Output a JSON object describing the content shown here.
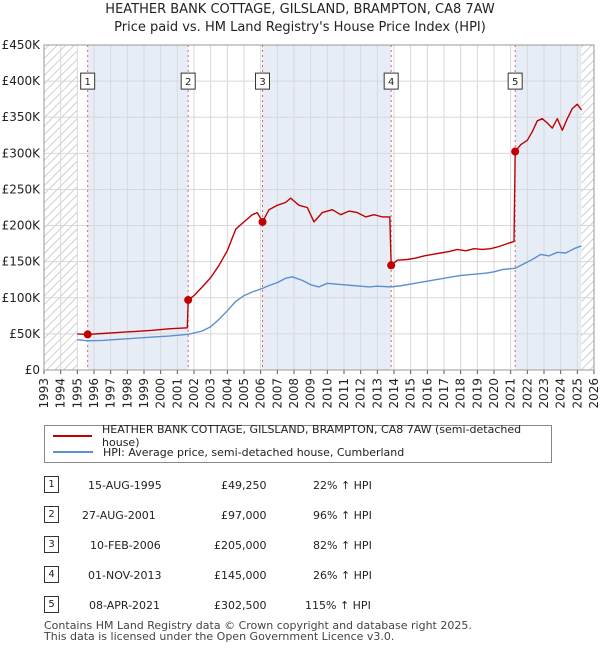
{
  "header": {
    "title": "HEATHER BANK COTTAGE, GILSLAND, BRAMPTON, CA8 7AW",
    "subtitle": "Price paid vs. HM Land Registry's House Price Index (HPI)"
  },
  "colors": {
    "property": "#c00000",
    "hpi": "#5b8fd0",
    "shade": "#dde6f3",
    "grid": "#d8d8d8",
    "marker_line": "#e06060"
  },
  "chart_data": {
    "type": "line",
    "title": "HEATHER BANK COTTAGE, GILSLAND, BRAMPTON, CA8 7AW",
    "subtitle": "Price paid vs. HM Land Registry's House Price Index (HPI)",
    "xlim": [
      1993,
      2026
    ],
    "ylim": [
      0,
      450000
    ],
    "x_ticks": [
      "1993",
      "1994",
      "1995",
      "1996",
      "1997",
      "1998",
      "1999",
      "2000",
      "2001",
      "2002",
      "2003",
      "2004",
      "2005",
      "2006",
      "2007",
      "2008",
      "2009",
      "2010",
      "2011",
      "2012",
      "2013",
      "2014",
      "2015",
      "2016",
      "2017",
      "2018",
      "2019",
      "2020",
      "2021",
      "2022",
      "2023",
      "2024",
      "2025",
      "2026"
    ],
    "y_ticks": [
      {
        "value": 0,
        "label": "£0"
      },
      {
        "value": 50000,
        "label": "£50K"
      },
      {
        "value": 100000,
        "label": "£100K"
      },
      {
        "value": 150000,
        "label": "£150K"
      },
      {
        "value": 200000,
        "label": "£200K"
      },
      {
        "value": 250000,
        "label": "£250K"
      },
      {
        "value": 300000,
        "label": "£300K"
      },
      {
        "value": 350000,
        "label": "£350K"
      },
      {
        "value": 400000,
        "label": "£400K"
      },
      {
        "value": 450000,
        "label": "£450K"
      }
    ],
    "hatched_ranges": [
      [
        1993,
        1995
      ],
      [
        2025.25,
        2026
      ]
    ],
    "grid": true,
    "series": [
      {
        "name": "HEATHER BANK COTTAGE, GILSLAND, BRAMPTON, CA8 7AW (semi-detached house)",
        "color": "#c00000",
        "points": [
          [
            1995.0,
            50000
          ],
          [
            1995.62,
            49250
          ],
          [
            1996.5,
            50500
          ],
          [
            1997.5,
            52000
          ],
          [
            1998.5,
            53500
          ],
          [
            1999.5,
            55000
          ],
          [
            2000.5,
            57000
          ],
          [
            2001.6,
            58500
          ],
          [
            2001.65,
            97000
          ],
          [
            2002.0,
            103000
          ],
          [
            2002.5,
            115000
          ],
          [
            2003.0,
            128000
          ],
          [
            2003.5,
            145000
          ],
          [
            2004.0,
            165000
          ],
          [
            2004.5,
            195000
          ],
          [
            2005.0,
            205000
          ],
          [
            2005.5,
            215000
          ],
          [
            2005.8,
            218000
          ],
          [
            2006.11,
            205000
          ],
          [
            2006.5,
            222000
          ],
          [
            2007.0,
            228000
          ],
          [
            2007.5,
            232000
          ],
          [
            2007.8,
            238000
          ],
          [
            2008.3,
            228000
          ],
          [
            2008.8,
            225000
          ],
          [
            2009.2,
            205000
          ],
          [
            2009.7,
            218000
          ],
          [
            2010.3,
            222000
          ],
          [
            2010.8,
            215000
          ],
          [
            2011.3,
            220000
          ],
          [
            2011.8,
            218000
          ],
          [
            2012.3,
            212000
          ],
          [
            2012.8,
            215000
          ],
          [
            2013.3,
            212000
          ],
          [
            2013.75,
            212000
          ],
          [
            2013.83,
            145000
          ],
          [
            2014.2,
            152000
          ],
          [
            2014.8,
            153000
          ],
          [
            2015.3,
            155000
          ],
          [
            2015.8,
            158000
          ],
          [
            2016.3,
            160000
          ],
          [
            2016.8,
            162000
          ],
          [
            2017.3,
            164000
          ],
          [
            2017.8,
            167000
          ],
          [
            2018.3,
            165000
          ],
          [
            2018.8,
            168000
          ],
          [
            2019.3,
            167000
          ],
          [
            2019.8,
            168000
          ],
          [
            2020.3,
            171000
          ],
          [
            2020.8,
            175000
          ],
          [
            2021.2,
            178000
          ],
          [
            2021.27,
            302500
          ],
          [
            2021.6,
            312000
          ],
          [
            2022.0,
            318000
          ],
          [
            2022.3,
            330000
          ],
          [
            2022.6,
            345000
          ],
          [
            2022.9,
            348000
          ],
          [
            2023.2,
            342000
          ],
          [
            2023.5,
            335000
          ],
          [
            2023.8,
            348000
          ],
          [
            2024.1,
            332000
          ],
          [
            2024.4,
            348000
          ],
          [
            2024.7,
            362000
          ],
          [
            2025.0,
            368000
          ],
          [
            2025.25,
            360000
          ]
        ]
      },
      {
        "name": "HPI: Average price, semi-detached house, Cumberland",
        "color": "#5b8fd0",
        "points": [
          [
            1995.0,
            42000
          ],
          [
            1995.62,
            40500
          ],
          [
            1996.5,
            41000
          ],
          [
            1997.5,
            42500
          ],
          [
            1998.5,
            44000
          ],
          [
            1999.5,
            45500
          ],
          [
            2000.5,
            47000
          ],
          [
            2001.65,
            49500
          ],
          [
            2002.5,
            54000
          ],
          [
            2003.0,
            60000
          ],
          [
            2003.5,
            70000
          ],
          [
            2004.0,
            82000
          ],
          [
            2004.5,
            95000
          ],
          [
            2005.0,
            103000
          ],
          [
            2005.5,
            108000
          ],
          [
            2006.11,
            113000
          ],
          [
            2006.5,
            117000
          ],
          [
            2007.0,
            121000
          ],
          [
            2007.5,
            127000
          ],
          [
            2007.9,
            129000
          ],
          [
            2008.5,
            124000
          ],
          [
            2009.0,
            118000
          ],
          [
            2009.5,
            115000
          ],
          [
            2010.0,
            120000
          ],
          [
            2010.5,
            119000
          ],
          [
            2011.0,
            118000
          ],
          [
            2011.5,
            117000
          ],
          [
            2012.0,
            116000
          ],
          [
            2012.5,
            115000
          ],
          [
            2013.0,
            116000
          ],
          [
            2013.83,
            115000
          ],
          [
            2014.5,
            117000
          ],
          [
            2015.0,
            119000
          ],
          [
            2015.5,
            121000
          ],
          [
            2016.0,
            123000
          ],
          [
            2016.5,
            125000
          ],
          [
            2017.0,
            127000
          ],
          [
            2017.5,
            129000
          ],
          [
            2018.0,
            131000
          ],
          [
            2018.5,
            132000
          ],
          [
            2019.0,
            133000
          ],
          [
            2019.5,
            134000
          ],
          [
            2020.0,
            136000
          ],
          [
            2020.5,
            139000
          ],
          [
            2021.27,
            141000
          ],
          [
            2021.8,
            147000
          ],
          [
            2022.3,
            153000
          ],
          [
            2022.8,
            160000
          ],
          [
            2023.3,
            158000
          ],
          [
            2023.8,
            163000
          ],
          [
            2024.3,
            162000
          ],
          [
            2024.8,
            168000
          ],
          [
            2025.25,
            172000
          ]
        ]
      }
    ],
    "sales": [
      {
        "label": "1",
        "x": 1995.62,
        "y": 49250
      },
      {
        "label": "2",
        "x": 2001.65,
        "y": 97000
      },
      {
        "label": "3",
        "x": 2006.11,
        "y": 205000
      },
      {
        "label": "4",
        "x": 2013.83,
        "y": 145000
      },
      {
        "label": "5",
        "x": 2021.27,
        "y": 302500
      }
    ],
    "legend_position": "below"
  },
  "legend": {
    "property_label": "HEATHER BANK COTTAGE, GILSLAND, BRAMPTON, CA8 7AW (semi-detached house)",
    "hpi_label": "HPI: Average price, semi-detached house, Cumberland"
  },
  "sales_table": [
    {
      "num": "1",
      "date": "15-AUG-1995",
      "price": "£49,250",
      "hpi": "22% ↑ HPI"
    },
    {
      "num": "2",
      "date": "27-AUG-2001",
      "price": "£97,000",
      "hpi": "96% ↑ HPI"
    },
    {
      "num": "3",
      "date": "10-FEB-2006",
      "price": "£205,000",
      "hpi": "82% ↑ HPI"
    },
    {
      "num": "4",
      "date": "01-NOV-2013",
      "price": "£145,000",
      "hpi": "26% ↑ HPI"
    },
    {
      "num": "5",
      "date": "08-APR-2021",
      "price": "£302,500",
      "hpi": "115% ↑ HPI"
    }
  ],
  "footer": {
    "line1": "Contains HM Land Registry data © Crown copyright and database right 2025.",
    "line2": "This data is licensed under the Open Government Licence v3.0."
  }
}
